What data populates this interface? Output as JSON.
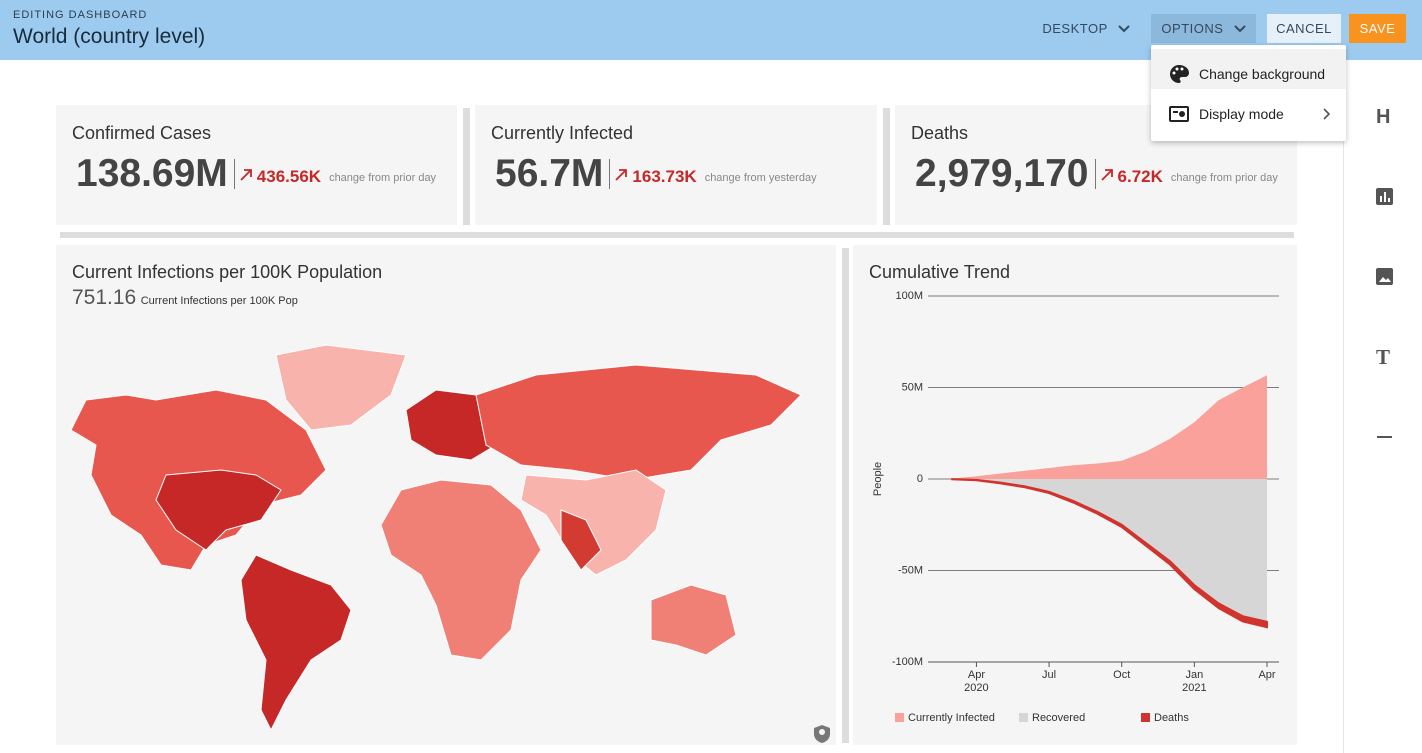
{
  "header": {
    "subtitle": "EDITING DASHBOARD",
    "title": "World (country level)",
    "buttons": [
      "DESKTOP",
      "OPTIONS",
      "CANCEL",
      "SAVE"
    ]
  },
  "menu": {
    "items": [
      "Change background",
      "Display mode"
    ]
  },
  "sidebar": {
    "letters": [
      "H",
      "T"
    ]
  },
  "kpis": [
    {
      "title": "Confirmed Cases",
      "value": "138.69M",
      "change": "436.56K",
      "note": "change from prior day"
    },
    {
      "title": "Currently Infected",
      "value": "56.7M",
      "change": "163.73K",
      "note": "change from yesterday"
    },
    {
      "title": "Deaths",
      "value": "2,979,170",
      "change": "6.72K",
      "note": "change from prior day"
    }
  ],
  "map": {
    "title": "Current Infections per 100K Population",
    "value": "751.16",
    "value_label": "Current Infections per 100K Pop"
  },
  "chart_data": {
    "type": "area",
    "title": "Cumulative Trend",
    "y_label": "People",
    "x": [
      "2020-03",
      "2020-04",
      "2020-05",
      "2020-06",
      "2020-07",
      "2020-08",
      "2020-09",
      "2020-10",
      "2020-11",
      "2020-12",
      "2021-01",
      "2021-02",
      "2021-03",
      "2021-04"
    ],
    "series": [
      {
        "name": "Currently Infected",
        "color": "#f9a19a",
        "values": [
          200000,
          1500000,
          3000000,
          4500000,
          6000000,
          7500000,
          8500000,
          10000000,
          15000000,
          22000000,
          31000000,
          43000000,
          50000000,
          56700000
        ]
      },
      {
        "name": "Recovered",
        "color": "#d6d6d6",
        "values": [
          -100000,
          -500000,
          -2000000,
          -4000000,
          -7000000,
          -12000000,
          -18000000,
          -25000000,
          -35000000,
          -45000000,
          -58000000,
          -68000000,
          -75000000,
          -78000000
        ]
      },
      {
        "name": "Deaths",
        "color": "#d0342c",
        "values": [
          -40000,
          -200000,
          -370000,
          -500000,
          -680000,
          -850000,
          -1000000,
          -1200000,
          -1450000,
          -1800000,
          -2200000,
          -2500000,
          -2800000,
          -2980000
        ]
      }
    ],
    "xlim": [
      "2020-02",
      "2021-04"
    ],
    "xticks": [
      {
        "value": "2020-04",
        "label": "Apr 2020"
      },
      {
        "value": "2020-07",
        "label": "Jul"
      },
      {
        "value": "2020-10",
        "label": "Oct"
      },
      {
        "value": "2021-01",
        "label": "Jan 2021"
      },
      {
        "value": "2021-04",
        "label": "Apr"
      }
    ],
    "ylim": [
      -100000000,
      100000000
    ],
    "yticks": [
      {
        "value": 100000000,
        "label": "100M"
      },
      {
        "value": 50000000,
        "label": "50M"
      },
      0,
      {
        "value": -50000000,
        "label": "-50M"
      },
      {
        "value": -100000000,
        "label": "-100M"
      }
    ],
    "grid": true,
    "stacked": true,
    "legend": "bottom"
  }
}
